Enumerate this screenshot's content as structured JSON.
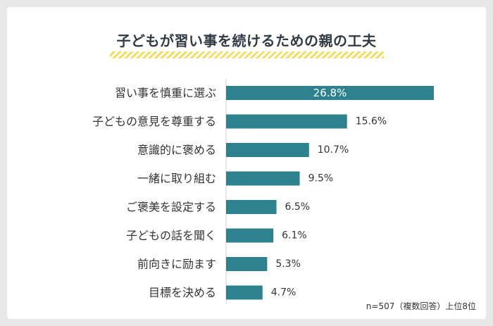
{
  "chart_data": {
    "type": "bar",
    "orientation": "horizontal",
    "title": "子どもが習い事を続けるための親の工夫",
    "categories": [
      "習い事を慎重に選ぶ",
      "子どもの意見を尊重する",
      "意識的に褒める",
      "一緒に取り組む",
      "ご褒美を設定する",
      "子どもの話を聞く",
      "前向きに励ます",
      "目標を決める"
    ],
    "values": [
      26.8,
      15.6,
      10.7,
      9.5,
      6.5,
      6.1,
      5.3,
      4.7
    ],
    "value_labels": [
      "26.8%",
      "15.6%",
      "10.7%",
      "9.5%",
      "6.5%",
      "6.1%",
      "5.3%",
      "4.7%"
    ],
    "xlim": [
      0,
      26.8
    ],
    "bar_color": "#2e8290",
    "grid": false,
    "note": "n=507（複数回答）上位8位"
  }
}
